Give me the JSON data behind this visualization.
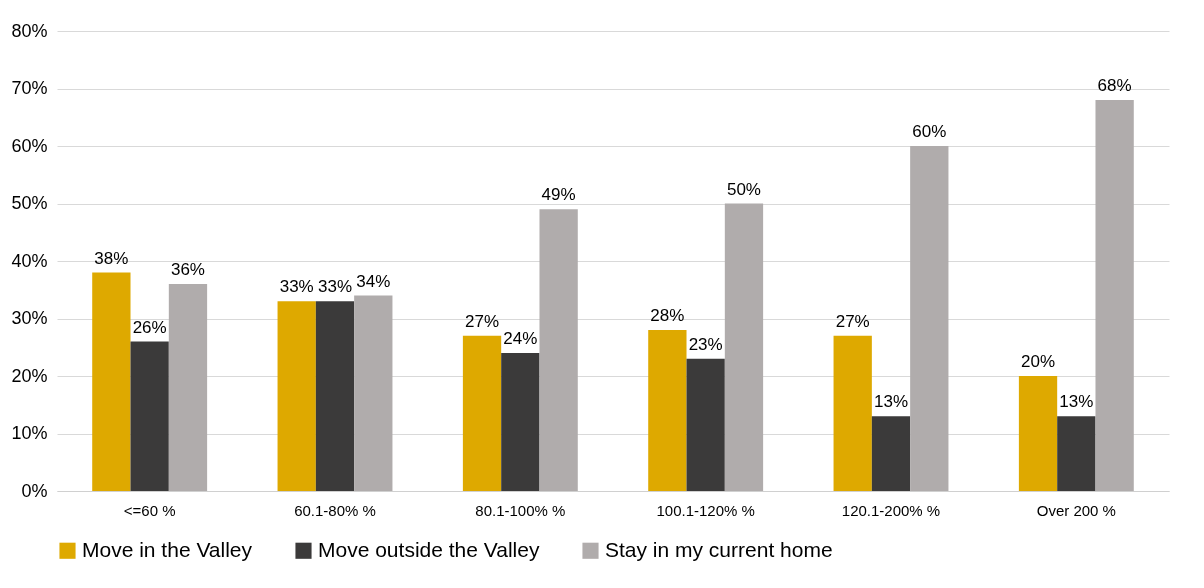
{
  "chart_data": {
    "type": "bar",
    "categories": [
      "<=60 %",
      "60.1-80% %",
      "80.1-100% %",
      "100.1-120% %",
      "120.1-200% %",
      "Over 200 %"
    ],
    "series": [
      {
        "name": "Move in the Valley",
        "color": "#dea900",
        "values": [
          38,
          33,
          27,
          28,
          27,
          20
        ],
        "value_labels": [
          "38%",
          "33%",
          "27%",
          "28%",
          "27%",
          "20%"
        ]
      },
      {
        "name": "Move outside the Valley",
        "color": "#3b3a3a",
        "values": [
          26,
          33,
          24,
          23,
          13,
          13
        ],
        "value_labels": [
          "26%",
          "33%",
          "24%",
          "23%",
          "13%",
          "13%"
        ]
      },
      {
        "name": "Stay in my current home",
        "color": "#b0acac",
        "values": [
          36,
          34,
          49,
          50,
          60,
          68
        ],
        "value_labels": [
          "36%",
          "34%",
          "49%",
          "50%",
          "60%",
          "68%"
        ]
      }
    ],
    "ylim": [
      0,
      80
    ],
    "yticks": [
      {
        "value": 0,
        "label": "0%"
      },
      {
        "value": 10,
        "label": "10%"
      },
      {
        "value": 20,
        "label": "20%"
      },
      {
        "value": 30,
        "label": "30%"
      },
      {
        "value": 40,
        "label": "40%"
      },
      {
        "value": 50,
        "label": "50%"
      },
      {
        "value": 60,
        "label": "60%"
      },
      {
        "value": 70,
        "label": "70%"
      },
      {
        "value": 80,
        "label": "80%"
      }
    ],
    "grid": "y",
    "legend": "bottom"
  }
}
